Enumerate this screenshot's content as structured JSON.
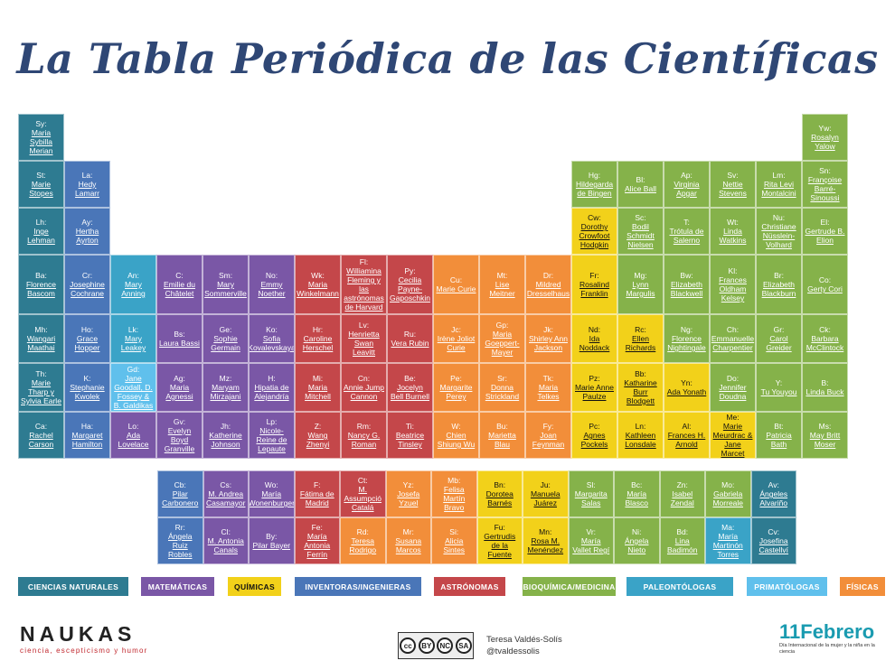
{
  "title": "La Tabla Periódica de las Científicas",
  "colors": {
    "naturales": "#2e7b91",
    "matematicas": "#7a57a6",
    "quimicas": "#f2d11a",
    "inventoras": "#4a76b8",
    "astronomas": "#c4474a",
    "bioquimica": "#85b24a",
    "paleontologas": "#3aa3c7",
    "primatologas": "#60c0ec",
    "fisicas": "#f28e3a"
  },
  "elements": [
    {
      "sym": "Sy:",
      "name": "Maria Sybilla Merian",
      "cat": "naturales",
      "col": 0,
      "row": 0
    },
    {
      "sym": "St:",
      "name": "Marie Stopes",
      "cat": "naturales",
      "col": 0,
      "row": 1
    },
    {
      "sym": "Lh:",
      "name": "Inge Lehman",
      "cat": "naturales",
      "col": 0,
      "row": 2
    },
    {
      "sym": "Ba:",
      "name": "Florence Bascom",
      "cat": "naturales",
      "col": 0,
      "row": 3
    },
    {
      "sym": "Mh:",
      "name": "Wangari Maathai",
      "cat": "naturales",
      "col": 0,
      "row": 4
    },
    {
      "sym": "Th:",
      "name": "Marie Tharp y Sylvia Earle",
      "cat": "naturales",
      "col": 0,
      "row": 5
    },
    {
      "sym": "Ca:",
      "name": "Rachel Carson",
      "cat": "naturales",
      "col": 0,
      "row": 6
    },
    {
      "sym": "La:",
      "name": "Hedy Lamarr",
      "cat": "inventoras",
      "col": 1,
      "row": 1
    },
    {
      "sym": "Ay:",
      "name": "Hertha Ayrton",
      "cat": "inventoras",
      "col": 1,
      "row": 2
    },
    {
      "sym": "Cr:",
      "name": "Josephine Cochrane",
      "cat": "inventoras",
      "col": 1,
      "row": 3
    },
    {
      "sym": "Ho:",
      "name": "Grace Hopper",
      "cat": "inventoras",
      "col": 1,
      "row": 4
    },
    {
      "sym": "K:",
      "name": "Stephanie Kwolek",
      "cat": "inventoras",
      "col": 1,
      "row": 5
    },
    {
      "sym": "Ha:",
      "name": "Margaret Hamilton",
      "cat": "inventoras",
      "col": 1,
      "row": 6
    },
    {
      "sym": "An:",
      "name": "Mary Anning",
      "cat": "paleontologas",
      "col": 2,
      "row": 3
    },
    {
      "sym": "Lk:",
      "name": "Mary Leakey",
      "cat": "paleontologas",
      "col": 2,
      "row": 4
    },
    {
      "sym": "Gd:",
      "name": "Jane Goodall, D. Fossey & B. Galdikas",
      "cat": "primatologas",
      "col": 2,
      "row": 5
    },
    {
      "sym": "Lo:",
      "name": "Ada Lovelace",
      "cat": "matematicas",
      "col": 2,
      "row": 6
    },
    {
      "sym": "C:",
      "name": "Emilie du Châtelet",
      "cat": "matematicas",
      "col": 3,
      "row": 3
    },
    {
      "sym": "Bs:",
      "name": "Laura Bassi",
      "cat": "matematicas",
      "col": 3,
      "row": 4
    },
    {
      "sym": "Ag:",
      "name": "Maria Agnessi",
      "cat": "matematicas",
      "col": 3,
      "row": 5
    },
    {
      "sym": "Gv:",
      "name": "Evelyn Boyd Granville",
      "cat": "matematicas",
      "col": 3,
      "row": 6
    },
    {
      "sym": "Sm:",
      "name": "Mary Sommerville",
      "cat": "matematicas",
      "col": 4,
      "row": 3
    },
    {
      "sym": "Ge:",
      "name": "Sophie Germain",
      "cat": "matematicas",
      "col": 4,
      "row": 4
    },
    {
      "sym": "Mz:",
      "name": "Maryam Mirzajani",
      "cat": "matematicas",
      "col": 4,
      "row": 5
    },
    {
      "sym": "Jh:",
      "name": "Katherine Johnson",
      "cat": "matematicas",
      "col": 4,
      "row": 6
    },
    {
      "sym": "No:",
      "name": "Emmy Noether",
      "cat": "matematicas",
      "col": 5,
      "row": 3
    },
    {
      "sym": "Ko:",
      "name": "Sofia Kovalevskaya",
      "cat": "matematicas",
      "col": 5,
      "row": 4
    },
    {
      "sym": "H:",
      "name": "Hipatia de Alejandría",
      "cat": "matematicas",
      "col": 5,
      "row": 5
    },
    {
      "sym": "Lp:",
      "name": "Nicole-Reine de Lepaute",
      "cat": "matematicas",
      "col": 5,
      "row": 6
    },
    {
      "sym": "Wk:",
      "name": "Maria Winkelmann",
      "cat": "astronomas",
      "col": 6,
      "row": 3
    },
    {
      "sym": "Hr:",
      "name": "Caroline Herschel",
      "cat": "astronomas",
      "col": 6,
      "row": 4
    },
    {
      "sym": "Mi:",
      "name": "Maria Mitchell",
      "cat": "astronomas",
      "col": 6,
      "row": 5
    },
    {
      "sym": "Z:",
      "name": "Wang Zhenyi",
      "cat": "astronomas",
      "col": 6,
      "row": 6
    },
    {
      "sym": "Fl:",
      "name": "Williamina Fleming y las astrónomas de Harvard",
      "cat": "astronomas",
      "col": 7,
      "row": 3
    },
    {
      "sym": "Lv:",
      "name": "Henrietta Swan Leavitt",
      "cat": "astronomas",
      "col": 7,
      "row": 4
    },
    {
      "sym": "Cn:",
      "name": "Annie Jump Cannon",
      "cat": "astronomas",
      "col": 7,
      "row": 5
    },
    {
      "sym": "Rm:",
      "name": "Nancy G. Roman",
      "cat": "astronomas",
      "col": 7,
      "row": 6
    },
    {
      "sym": "Py:",
      "name": "Cecilia Payne-Gaposchkin",
      "cat": "astronomas",
      "col": 8,
      "row": 3
    },
    {
      "sym": "Ru:",
      "name": "Vera Rubin",
      "cat": "astronomas",
      "col": 8,
      "row": 4
    },
    {
      "sym": "Be:",
      "name": "Jocelyn Bell Burnell",
      "cat": "astronomas",
      "col": 8,
      "row": 5
    },
    {
      "sym": "Ti:",
      "name": "Beatrice Tinsley",
      "cat": "astronomas",
      "col": 8,
      "row": 6
    },
    {
      "sym": "Cu:",
      "name": "Marie Curie",
      "cat": "fisicas",
      "col": 9,
      "row": 3
    },
    {
      "sym": "Jc:",
      "name": "Irène Joliot Curie",
      "cat": "fisicas",
      "col": 9,
      "row": 4
    },
    {
      "sym": "Pe:",
      "name": "Margarite Perey",
      "cat": "fisicas",
      "col": 9,
      "row": 5
    },
    {
      "sym": "W:",
      "name": "Chien Shiung Wu",
      "cat": "fisicas",
      "col": 9,
      "row": 6
    },
    {
      "sym": "Mt:",
      "name": "Lise Meitner",
      "cat": "fisicas",
      "col": 10,
      "row": 3
    },
    {
      "sym": "Gp:",
      "name": "Maria Goeppert-Mayer",
      "cat": "fisicas",
      "col": 10,
      "row": 4
    },
    {
      "sym": "Sr:",
      "name": "Donna Strickland",
      "cat": "fisicas",
      "col": 10,
      "row": 5
    },
    {
      "sym": "Bu:",
      "name": "Marietta Blau",
      "cat": "fisicas",
      "col": 10,
      "row": 6
    },
    {
      "sym": "Dr:",
      "name": "Mildred Dresselhaus",
      "cat": "fisicas",
      "col": 11,
      "row": 3
    },
    {
      "sym": "Jk:",
      "name": "Shirley Ann Jackson",
      "cat": "fisicas",
      "col": 11,
      "row": 4
    },
    {
      "sym": "Tk:",
      "name": "Maria Telkes",
      "cat": "fisicas",
      "col": 11,
      "row": 5
    },
    {
      "sym": "Fy:",
      "name": "Joan Feynman",
      "cat": "fisicas",
      "col": 11,
      "row": 6
    },
    {
      "sym": "Hg:",
      "name": "Hildegarda de Bingen",
      "cat": "bioquimica",
      "col": 12,
      "row": 1
    },
    {
      "sym": "Cw:",
      "name": "Dorothy Crowfoot Hodgkin",
      "cat": "quimicas",
      "col": 12,
      "row": 2
    },
    {
      "sym": "Fr:",
      "name": "Rosalind Franklin",
      "cat": "quimicas",
      "col": 12,
      "row": 3
    },
    {
      "sym": "Nd:",
      "name": "Ida Noddack",
      "cat": "quimicas",
      "col": 12,
      "row": 4
    },
    {
      "sym": "Pz:",
      "name": "Marie Anne Paulze",
      "cat": "quimicas",
      "col": 12,
      "row": 5
    },
    {
      "sym": "Pc:",
      "name": "Agnes Pockels",
      "cat": "quimicas",
      "col": 12,
      "row": 6
    },
    {
      "sym": "Bl:",
      "name": "Alice Ball",
      "cat": "bioquimica",
      "col": 13,
      "row": 1
    },
    {
      "sym": "Sc:",
      "name": "Bodil Schmidt Nielsen",
      "cat": "bioquimica",
      "col": 13,
      "row": 2
    },
    {
      "sym": "Mg:",
      "name": "Lynn Margulis",
      "cat": "bioquimica",
      "col": 13,
      "row": 3
    },
    {
      "sym": "Rc:",
      "name": "Ellen Richards",
      "cat": "quimicas",
      "col": 13,
      "row": 4
    },
    {
      "sym": "Bb:",
      "name": "Katharine Burr Blodgett",
      "cat": "quimicas",
      "col": 13,
      "row": 5
    },
    {
      "sym": "Ln:",
      "name": "Kathleen Lonsdale",
      "cat": "quimicas",
      "col": 13,
      "row": 6
    },
    {
      "sym": "Ap:",
      "name": "Virginia Apgar",
      "cat": "bioquimica",
      "col": 14,
      "row": 1
    },
    {
      "sym": "T:",
      "name": "Trótula de Salerno",
      "cat": "bioquimica",
      "col": 14,
      "row": 2
    },
    {
      "sym": "Bw:",
      "name": "Elizabeth Blackwell",
      "cat": "bioquimica",
      "col": 14,
      "row": 3
    },
    {
      "sym": "Ng:",
      "name": "Florence Nightingale",
      "cat": "bioquimica",
      "col": 14,
      "row": 4
    },
    {
      "sym": "Yn:",
      "name": "Ada Yonath",
      "cat": "quimicas",
      "col": 14,
      "row": 5
    },
    {
      "sym": "Al:",
      "name": "Frances H. Arnold",
      "cat": "quimicas",
      "col": 14,
      "row": 6
    },
    {
      "sym": "Sv:",
      "name": "Nettie Stevens",
      "cat": "bioquimica",
      "col": 15,
      "row": 1
    },
    {
      "sym": "Wt:",
      "name": "Linda Watkins",
      "cat": "bioquimica",
      "col": 15,
      "row": 2
    },
    {
      "sym": "Kl:",
      "name": "Frances Oldham Kelsey",
      "cat": "bioquimica",
      "col": 15,
      "row": 3
    },
    {
      "sym": "Ch:",
      "name": "Emmanuelle Charpentier",
      "cat": "bioquimica",
      "col": 15,
      "row": 4
    },
    {
      "sym": "Do:",
      "name": "Jennifer Doudna",
      "cat": "bioquimica",
      "col": 15,
      "row": 5
    },
    {
      "sym": "Me:",
      "name": "Marie Meurdrac & Jane Marcet",
      "cat": "quimicas",
      "col": 15,
      "row": 6
    },
    {
      "sym": "Lm:",
      "name": "Rita Levi Montalcini",
      "cat": "bioquimica",
      "col": 16,
      "row": 1
    },
    {
      "sym": "Nu:",
      "name": "Christiane Nüsslein-Volhard",
      "cat": "bioquimica",
      "col": 16,
      "row": 2
    },
    {
      "sym": "Br:",
      "name": "Elizabeth Blackburn",
      "cat": "bioquimica",
      "col": 16,
      "row": 3
    },
    {
      "sym": "Gr:",
      "name": "Carol Greider",
      "cat": "bioquimica",
      "col": 16,
      "row": 4
    },
    {
      "sym": "Y:",
      "name": "Tu Youyou",
      "cat": "bioquimica",
      "col": 16,
      "row": 5
    },
    {
      "sym": "Bt:",
      "name": "Patricia Bath",
      "cat": "bioquimica",
      "col": 16,
      "row": 6
    },
    {
      "sym": "Yw:",
      "name": "Rosalyn Yalow",
      "cat": "bioquimica",
      "col": 17,
      "row": 0
    },
    {
      "sym": "Sn:",
      "name": "Françoise Barré-Sinoussi",
      "cat": "bioquimica",
      "col": 17,
      "row": 1
    },
    {
      "sym": "El:",
      "name": "Gertrude B. Elion",
      "cat": "bioquimica",
      "col": 17,
      "row": 2
    },
    {
      "sym": "Co:",
      "name": "Gerty Cori",
      "cat": "bioquimica",
      "col": 17,
      "row": 3
    },
    {
      "sym": "Ck:",
      "name": "Barbara McClintock",
      "cat": "bioquimica",
      "col": 17,
      "row": 4
    },
    {
      "sym": "B:",
      "name": "Linda Buck",
      "cat": "bioquimica",
      "col": 17,
      "row": 5
    },
    {
      "sym": "Ms:",
      "name": "May Britt Moser",
      "cat": "bioquimica",
      "col": 17,
      "row": 6
    }
  ],
  "extra": [
    {
      "sym": "Cb:",
      "name": "Pilar Carbonero",
      "cat": "inventoras",
      "col": 0,
      "row": 0
    },
    {
      "sym": "Cs:",
      "name": "M. Andrea Casamayor",
      "cat": "matematicas",
      "col": 1,
      "row": 0
    },
    {
      "sym": "Wo:",
      "name": "María Wonenburger",
      "cat": "matematicas",
      "col": 2,
      "row": 0
    },
    {
      "sym": "F:",
      "name": "Fátima de Madrid",
      "cat": "astronomas",
      "col": 3,
      "row": 0
    },
    {
      "sym": "Ct:",
      "name": "M. Assumpció Catalá",
      "cat": "astronomas",
      "col": 4,
      "row": 0
    },
    {
      "sym": "Yz:",
      "name": "Josefa Yzuel",
      "cat": "fisicas",
      "col": 5,
      "row": 0
    },
    {
      "sym": "Mb:",
      "name": "Felisa Martín Bravo",
      "cat": "fisicas",
      "col": 6,
      "row": 0
    },
    {
      "sym": "Bn:",
      "name": "Dorotea Barnés",
      "cat": "quimicas",
      "col": 7,
      "row": 0
    },
    {
      "sym": "Ju:",
      "name": "Manuela Juárez",
      "cat": "quimicas",
      "col": 8,
      "row": 0
    },
    {
      "sym": "Sl:",
      "name": "Margarita Salas",
      "cat": "bioquimica",
      "col": 9,
      "row": 0
    },
    {
      "sym": "Bc:",
      "name": "María Blasco",
      "cat": "bioquimica",
      "col": 10,
      "row": 0
    },
    {
      "sym": "Zn:",
      "name": "Isabel Zendal",
      "cat": "bioquimica",
      "col": 11,
      "row": 0
    },
    {
      "sym": "Mo:",
      "name": "Gabriela Morreale",
      "cat": "bioquimica",
      "col": 12,
      "row": 0
    },
    {
      "sym": "Av:",
      "name": "Ángeles Alvariño",
      "cat": "naturales",
      "col": 13,
      "row": 0
    },
    {
      "sym": "Rr:",
      "name": "Ángela Ruiz Robles",
      "cat": "inventoras",
      "col": 0,
      "row": 1
    },
    {
      "sym": "Cl:",
      "name": "M. Antonia Canals",
      "cat": "matematicas",
      "col": 1,
      "row": 1
    },
    {
      "sym": "By:",
      "name": "Pilar Bayer",
      "cat": "matematicas",
      "col": 2,
      "row": 1
    },
    {
      "sym": "Fe:",
      "name": "María Antonia Ferrín",
      "cat": "astronomas",
      "col": 3,
      "row": 1
    },
    {
      "sym": "Rd:",
      "name": "Teresa Rodrigo",
      "cat": "fisicas",
      "col": 4,
      "row": 1
    },
    {
      "sym": "Mr:",
      "name": "Susana Marcos",
      "cat": "fisicas",
      "col": 5,
      "row": 1
    },
    {
      "sym": "Si:",
      "name": "Alicia Sintes",
      "cat": "fisicas",
      "col": 6,
      "row": 1
    },
    {
      "sym": "Fu:",
      "name": "Gertrudis de la Fuente",
      "cat": "quimicas",
      "col": 7,
      "row": 1
    },
    {
      "sym": "Mn:",
      "name": "Rosa M. Menéndez",
      "cat": "quimicas",
      "col": 8,
      "row": 1
    },
    {
      "sym": "Vr:",
      "name": "María Vallet Regí",
      "cat": "bioquimica",
      "col": 9,
      "row": 1
    },
    {
      "sym": "Ni:",
      "name": "Ángela Nieto",
      "cat": "bioquimica",
      "col": 10,
      "row": 1
    },
    {
      "sym": "Bd:",
      "name": "Lina Badimón",
      "cat": "bioquimica",
      "col": 11,
      "row": 1
    },
    {
      "sym": "Ma:",
      "name": "María Martinón Torres",
      "cat": "paleontologas",
      "col": 12,
      "row": 1
    },
    {
      "sym": "Cv:",
      "name": "Josefina Castellví",
      "cat": "naturales",
      "col": 13,
      "row": 1
    }
  ],
  "legend": [
    {
      "label": "CIENCIAS NATURALES",
      "cat": "naturales"
    },
    {
      "label": "MATEMÁTICAS",
      "cat": "matematicas"
    },
    {
      "label": "QUÍMICAS",
      "cat": "quimicas"
    },
    {
      "label": "INVENTORAS/INGENIERAS",
      "cat": "inventoras"
    },
    {
      "label": "ASTRÓNOMAS",
      "cat": "astronomas"
    },
    {
      "label": "BIOQUÍMICA/MEDICINA",
      "cat": "bioquimica"
    },
    {
      "label": "PALEONTÓLOGAS",
      "cat": "paleontologas"
    },
    {
      "label": "PRIMATÓLOGAS",
      "cat": "primatologas"
    },
    {
      "label": "FÍSICAS",
      "cat": "fisicas"
    }
  ],
  "footer": {
    "brand": "NAUKAS",
    "brand_sub": "ciencia, escepticismo y humor",
    "cc_labels": [
      "cc",
      "BY",
      "NC",
      "SA"
    ],
    "author": "Teresa Valdés-Solís",
    "handle": "@tvaldessolis",
    "feb_title": "11Febrero",
    "feb_sub": "Día Internacional de la mujer y la niña en la ciencia"
  }
}
